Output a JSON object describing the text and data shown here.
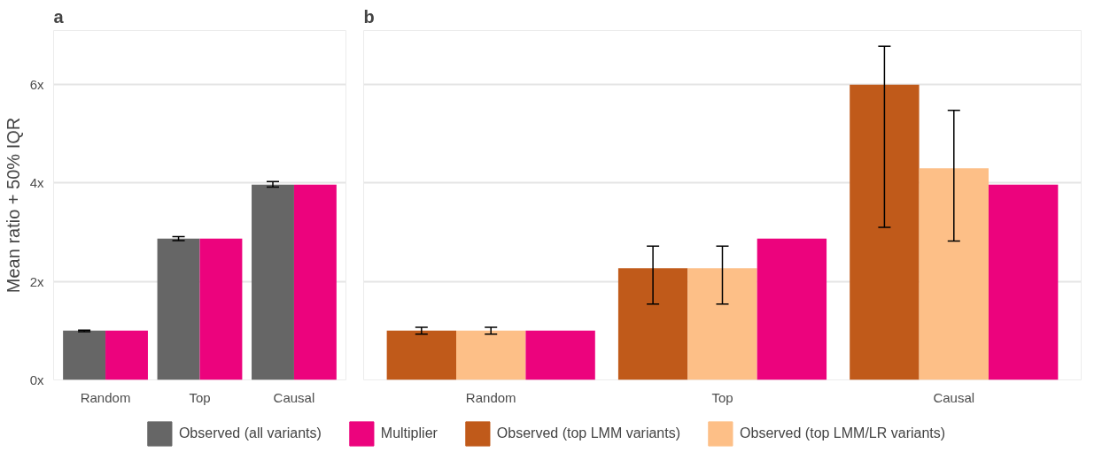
{
  "chart_data": [
    {
      "type": "bar",
      "title": "a",
      "ylabel": "Mean ratio + 50% IQR",
      "categories": [
        "Random",
        "Top",
        "Causal"
      ],
      "ylim": [
        0,
        7.1
      ],
      "yticks": [
        {
          "value": 0,
          "label": "0x"
        },
        {
          "value": 2,
          "label": "2x"
        },
        {
          "value": 4,
          "label": "4x"
        },
        {
          "value": 6,
          "label": "6x"
        }
      ],
      "grid": "y",
      "legend": "bottom",
      "series": [
        {
          "name": "Observed (all variants)",
          "color": "#666666",
          "values": [
            1.0,
            2.87,
            3.97
          ],
          "errors": [
            [
              0.98,
              1.01
            ],
            [
              2.83,
              2.91
            ],
            [
              3.92,
              4.03
            ]
          ]
        },
        {
          "name": "Multiplier",
          "color": "#ec037d",
          "values": [
            1.0,
            2.87,
            3.97
          ]
        }
      ]
    },
    {
      "type": "bar",
      "title": "b",
      "categories": [
        "Random",
        "Top",
        "Causal"
      ],
      "ylim": [
        0,
        7.1
      ],
      "yticks": [
        {
          "value": 0,
          "label": "0x"
        },
        {
          "value": 2,
          "label": "2x"
        },
        {
          "value": 4,
          "label": "4x"
        },
        {
          "value": 6,
          "label": "6x"
        }
      ],
      "grid": "y",
      "legend": "bottom",
      "tick_labels": "x",
      "series": [
        {
          "name": "Observed (top LMM variants)",
          "color": "#c05a1a",
          "values": [
            1.0,
            2.27,
            6.0
          ],
          "errors": [
            [
              0.93,
              1.07
            ],
            [
              1.54,
              2.72
            ],
            [
              3.1,
              6.78
            ]
          ]
        },
        {
          "name": "Observed (top LMM/LR variants)",
          "color": "#fdbf87",
          "values": [
            1.0,
            2.27,
            4.3
          ],
          "errors": [
            [
              0.93,
              1.07
            ],
            [
              1.54,
              2.72
            ],
            [
              2.82,
              5.48
            ]
          ]
        },
        {
          "name": "Multiplier",
          "color": "#ec037d",
          "values": [
            1.0,
            2.87,
            3.97
          ]
        }
      ]
    }
  ]
}
